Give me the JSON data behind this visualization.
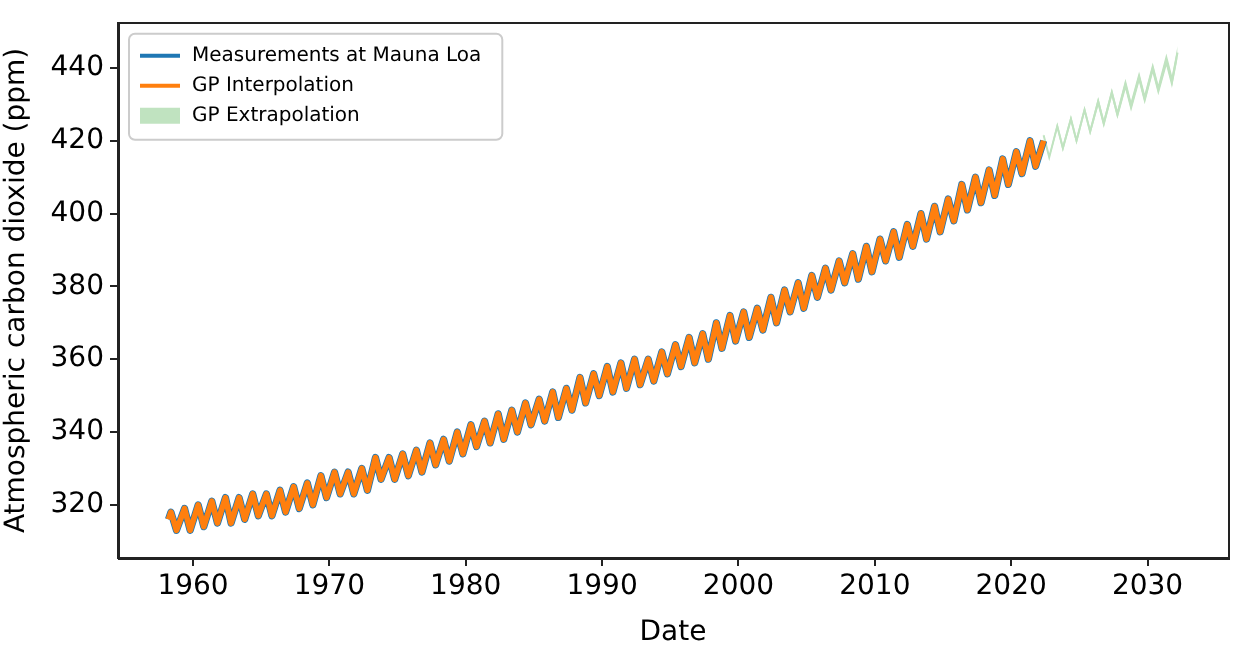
{
  "chart_data": {
    "type": "line",
    "xlabel": "Date",
    "ylabel": "Atmospheric carbon dioxide (ppm)",
    "xlim": [
      1954.5,
      2035.9
    ],
    "ylim": [
      305.4,
      452.4
    ],
    "xticks": [
      1960,
      1970,
      1980,
      1990,
      2000,
      2010,
      2020,
      2030
    ],
    "yticks": [
      320,
      340,
      360,
      380,
      400,
      420,
      440
    ],
    "legend": "top left",
    "marker": "none",
    "line_style": "solid",
    "x": [
      1958.2,
      1958.38,
      1958.79,
      1959.38,
      1959.79,
      1960.38,
      1960.79,
      1961.38,
      1961.79,
      1962.38,
      1962.79,
      1963.38,
      1963.79,
      1964.38,
      1964.79,
      1965.38,
      1965.79,
      1966.38,
      1966.79,
      1967.38,
      1967.79,
      1968.38,
      1968.79,
      1969.38,
      1969.79,
      1970.38,
      1970.79,
      1971.38,
      1971.79,
      1972.38,
      1972.79,
      1973.38,
      1973.79,
      1974.38,
      1974.79,
      1975.38,
      1975.79,
      1976.38,
      1976.79,
      1977.38,
      1977.79,
      1978.38,
      1978.79,
      1979.38,
      1979.79,
      1980.38,
      1980.79,
      1981.38,
      1981.79,
      1982.38,
      1982.79,
      1983.38,
      1983.79,
      1984.38,
      1984.79,
      1985.38,
      1985.79,
      1986.38,
      1986.79,
      1987.38,
      1987.79,
      1988.38,
      1988.79,
      1989.38,
      1989.79,
      1990.38,
      1990.79,
      1991.38,
      1991.79,
      1992.38,
      1992.79,
      1993.38,
      1993.79,
      1994.38,
      1994.79,
      1995.38,
      1995.79,
      1996.38,
      1996.79,
      1997.38,
      1997.79,
      1998.38,
      1998.79,
      1999.38,
      1999.79,
      2000.38,
      2000.79,
      2001.38,
      2001.79,
      2002.38,
      2002.79,
      2003.38,
      2003.79,
      2004.38,
      2004.79,
      2005.38,
      2005.79,
      2006.38,
      2006.79,
      2007.38,
      2007.79,
      2008.38,
      2008.79,
      2009.38,
      2009.79,
      2010.38,
      2010.79,
      2011.38,
      2011.79,
      2012.38,
      2012.79,
      2013.38,
      2013.79,
      2014.38,
      2014.79,
      2015.38,
      2015.79,
      2016.38,
      2016.79,
      2017.38,
      2017.79,
      2018.38,
      2018.79,
      2019.38,
      2019.79,
      2020.38,
      2020.79,
      2021.38,
      2021.79,
      2022.38
    ],
    "series": [
      {
        "name": "Measurements at Mauna Loa",
        "color": "#1f77b4",
        "values": [
          316,
          318,
          313,
          319,
          313,
          320,
          314,
          321,
          315,
          322,
          315,
          322,
          316,
          323,
          317,
          323,
          317,
          324,
          318,
          325,
          319,
          326,
          320,
          328,
          322,
          329,
          323,
          329,
          323,
          330,
          324,
          333,
          327,
          333,
          327,
          334,
          328,
          335,
          329,
          337,
          331,
          338,
          332,
          340,
          334,
          342,
          336,
          343,
          337,
          345,
          338,
          346,
          340,
          348,
          342,
          349,
          343,
          351,
          344,
          352,
          346,
          355,
          348,
          356,
          350,
          358,
          351,
          359,
          352,
          360,
          353,
          360,
          354,
          362,
          356,
          364,
          358,
          366,
          359,
          367,
          360,
          370,
          363,
          372,
          365,
          373,
          366,
          374,
          368,
          377,
          370,
          379,
          373,
          381,
          374,
          383,
          377,
          385,
          379,
          387,
          381,
          389,
          382,
          391,
          384,
          393,
          387,
          395,
          388,
          397,
          391,
          400,
          393,
          402,
          395,
          404,
          398,
          408,
          401,
          410,
          403,
          412,
          405,
          415,
          408,
          417,
          411,
          420,
          413,
          420
        ]
      },
      {
        "name": "GP Interpolation",
        "color": "#ff7f0e",
        "values": [
          316,
          318,
          313,
          319,
          313,
          320,
          314,
          321,
          315,
          322,
          315,
          322,
          316,
          323,
          317,
          323,
          317,
          324,
          318,
          325,
          319,
          326,
          320,
          328,
          322,
          329,
          323,
          329,
          323,
          330,
          324,
          333,
          327,
          333,
          327,
          334,
          328,
          335,
          329,
          337,
          331,
          338,
          332,
          340,
          334,
          342,
          336,
          343,
          337,
          345,
          338,
          346,
          340,
          348,
          342,
          349,
          343,
          351,
          344,
          352,
          346,
          355,
          348,
          356,
          350,
          358,
          351,
          359,
          352,
          360,
          353,
          360,
          354,
          362,
          356,
          364,
          358,
          366,
          359,
          367,
          360,
          370,
          363,
          372,
          365,
          373,
          366,
          374,
          368,
          377,
          370,
          379,
          373,
          381,
          374,
          383,
          377,
          385,
          379,
          387,
          381,
          389,
          382,
          391,
          384,
          393,
          387,
          395,
          388,
          397,
          391,
          400,
          393,
          402,
          395,
          404,
          398,
          408,
          401,
          410,
          403,
          412,
          405,
          415,
          408,
          417,
          411,
          420,
          413,
          420
        ]
      },
      {
        "name": "GP Extrapolation",
        "type": "line",
        "color": "#c0e3c0",
        "x": [
          2022.38,
          2022.79,
          2023.38,
          2023.79,
          2024.38,
          2024.79,
          2025.38,
          2025.79,
          2026.38,
          2026.79,
          2027.38,
          2027.79,
          2028.38,
          2028.79,
          2029.38,
          2029.79,
          2030.38,
          2030.79,
          2031.38,
          2031.79,
          2032.2
        ],
        "values": [
          421.5,
          415.5,
          424,
          418,
          426,
          420,
          428.5,
          422.5,
          430.8,
          424.8,
          433.2,
          427.2,
          435.5,
          429.5,
          437.5,
          431.5,
          440,
          434,
          442.2,
          436.2,
          444.2
        ],
        "lower": [
          421,
          415,
          423,
          417,
          425,
          419,
          427.5,
          421.5,
          429.5,
          423.5,
          432,
          426,
          434,
          428,
          436,
          430,
          438.5,
          432.5,
          440.5,
          434.5,
          442.5
        ],
        "upper": [
          422,
          416,
          425,
          419,
          427,
          421,
          429.5,
          423.5,
          432,
          426,
          434.5,
          428.5,
          437,
          431,
          439,
          433,
          441.5,
          435.5,
          444,
          438,
          446
        ]
      }
    ]
  }
}
